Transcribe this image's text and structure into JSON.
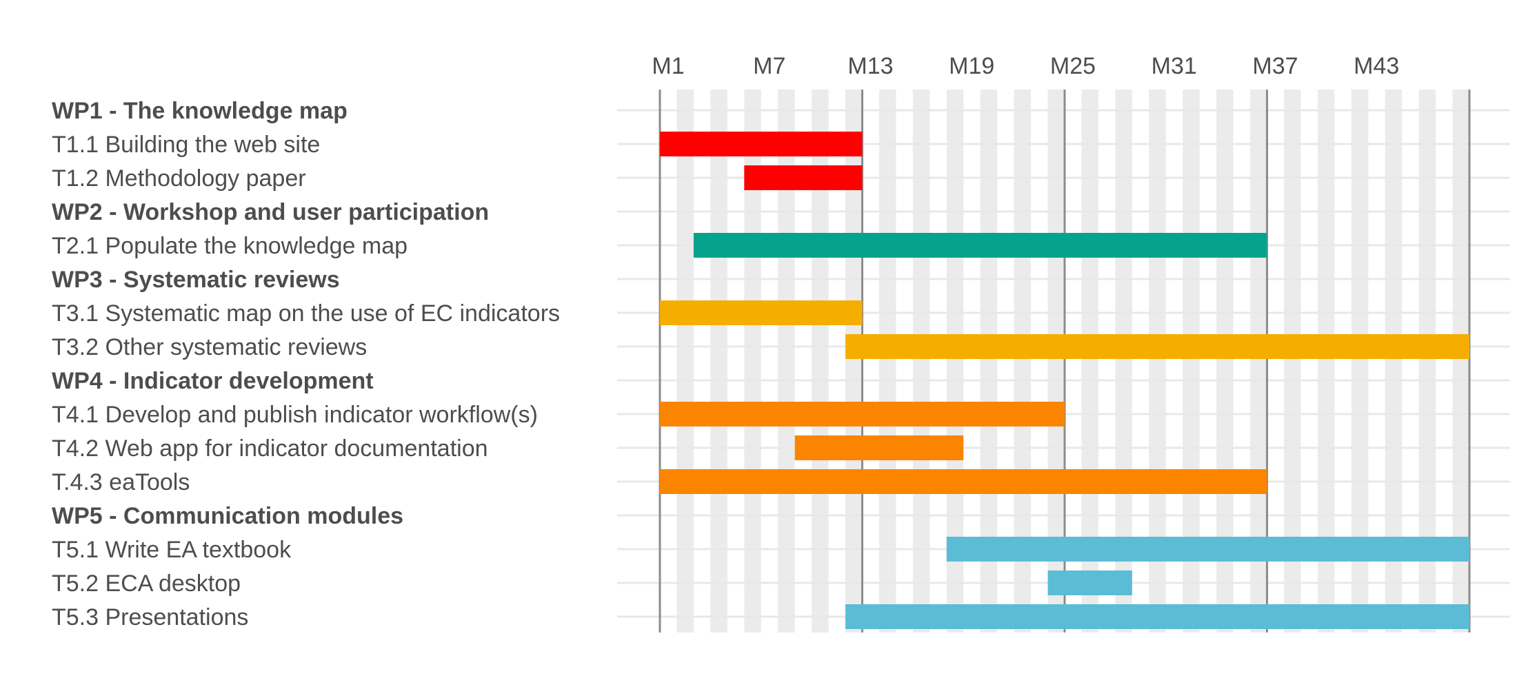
{
  "chart_data": {
    "type": "gantt",
    "title": "",
    "xlabel": "",
    "ylabel": "",
    "x_unit": "month",
    "xlim": [
      0,
      48
    ],
    "x_ticks": [
      {
        "month": 1,
        "label": "M1"
      },
      {
        "month": 7,
        "label": "M7"
      },
      {
        "month": 13,
        "label": "M13"
      },
      {
        "month": 19,
        "label": "M19"
      },
      {
        "month": 25,
        "label": "M25"
      },
      {
        "month": 31,
        "label": "M31"
      },
      {
        "month": 37,
        "label": "M37"
      },
      {
        "month": 43,
        "label": "M43"
      }
    ],
    "major_gridlines_months": [
      0,
      12,
      24,
      36,
      48
    ],
    "alternating_month_shading": true,
    "rows": [
      {
        "label": "WP1 - The knowledge map",
        "kind": "wp"
      },
      {
        "label": "T1.1 Building the web site",
        "kind": "task",
        "start": 0,
        "end": 12,
        "color": "#ff0000"
      },
      {
        "label": "T1.2 Methodology paper",
        "kind": "task",
        "start": 5,
        "end": 12,
        "color": "#ff0000"
      },
      {
        "label": "WP2 - Workshop and user participation",
        "kind": "wp"
      },
      {
        "label": "T2.1 Populate the knowledge map",
        "kind": "task",
        "start": 2,
        "end": 36,
        "color": "#06a38c"
      },
      {
        "label": "WP3 - Systematic reviews",
        "kind": "wp"
      },
      {
        "label": "T3.1 Systematic map on the use of EC indicators",
        "kind": "task",
        "start": 0,
        "end": 12,
        "color": "#f5ae00"
      },
      {
        "label": "T3.2 Other systematic reviews",
        "kind": "task",
        "start": 11,
        "end": 48,
        "color": "#f5ae00"
      },
      {
        "label": "WP4 - Indicator development",
        "kind": "wp"
      },
      {
        "label": "T4.1 Develop and publish indicator workflow(s)",
        "kind": "task",
        "start": 0,
        "end": 24,
        "color": "#fb8500"
      },
      {
        "label": "T4.2 Web app for indicator documentation",
        "kind": "task",
        "start": 8,
        "end": 18,
        "color": "#fb8500"
      },
      {
        "label": "T.4.3 eaTools",
        "kind": "task",
        "start": 0,
        "end": 36,
        "color": "#fb8500"
      },
      {
        "label": "WP5 - Communication modules",
        "kind": "wp"
      },
      {
        "label": "T5.1 Write EA textbook",
        "kind": "task",
        "start": 17,
        "end": 48,
        "color": "#5bbcd6"
      },
      {
        "label": "T5.2 ECA desktop",
        "kind": "task",
        "start": 23,
        "end": 28,
        "color": "#5bbcd6"
      },
      {
        "label": "T5.3 Presentations",
        "kind": "task",
        "start": 11,
        "end": 48,
        "color": "#5bbcd6"
      }
    ]
  }
}
